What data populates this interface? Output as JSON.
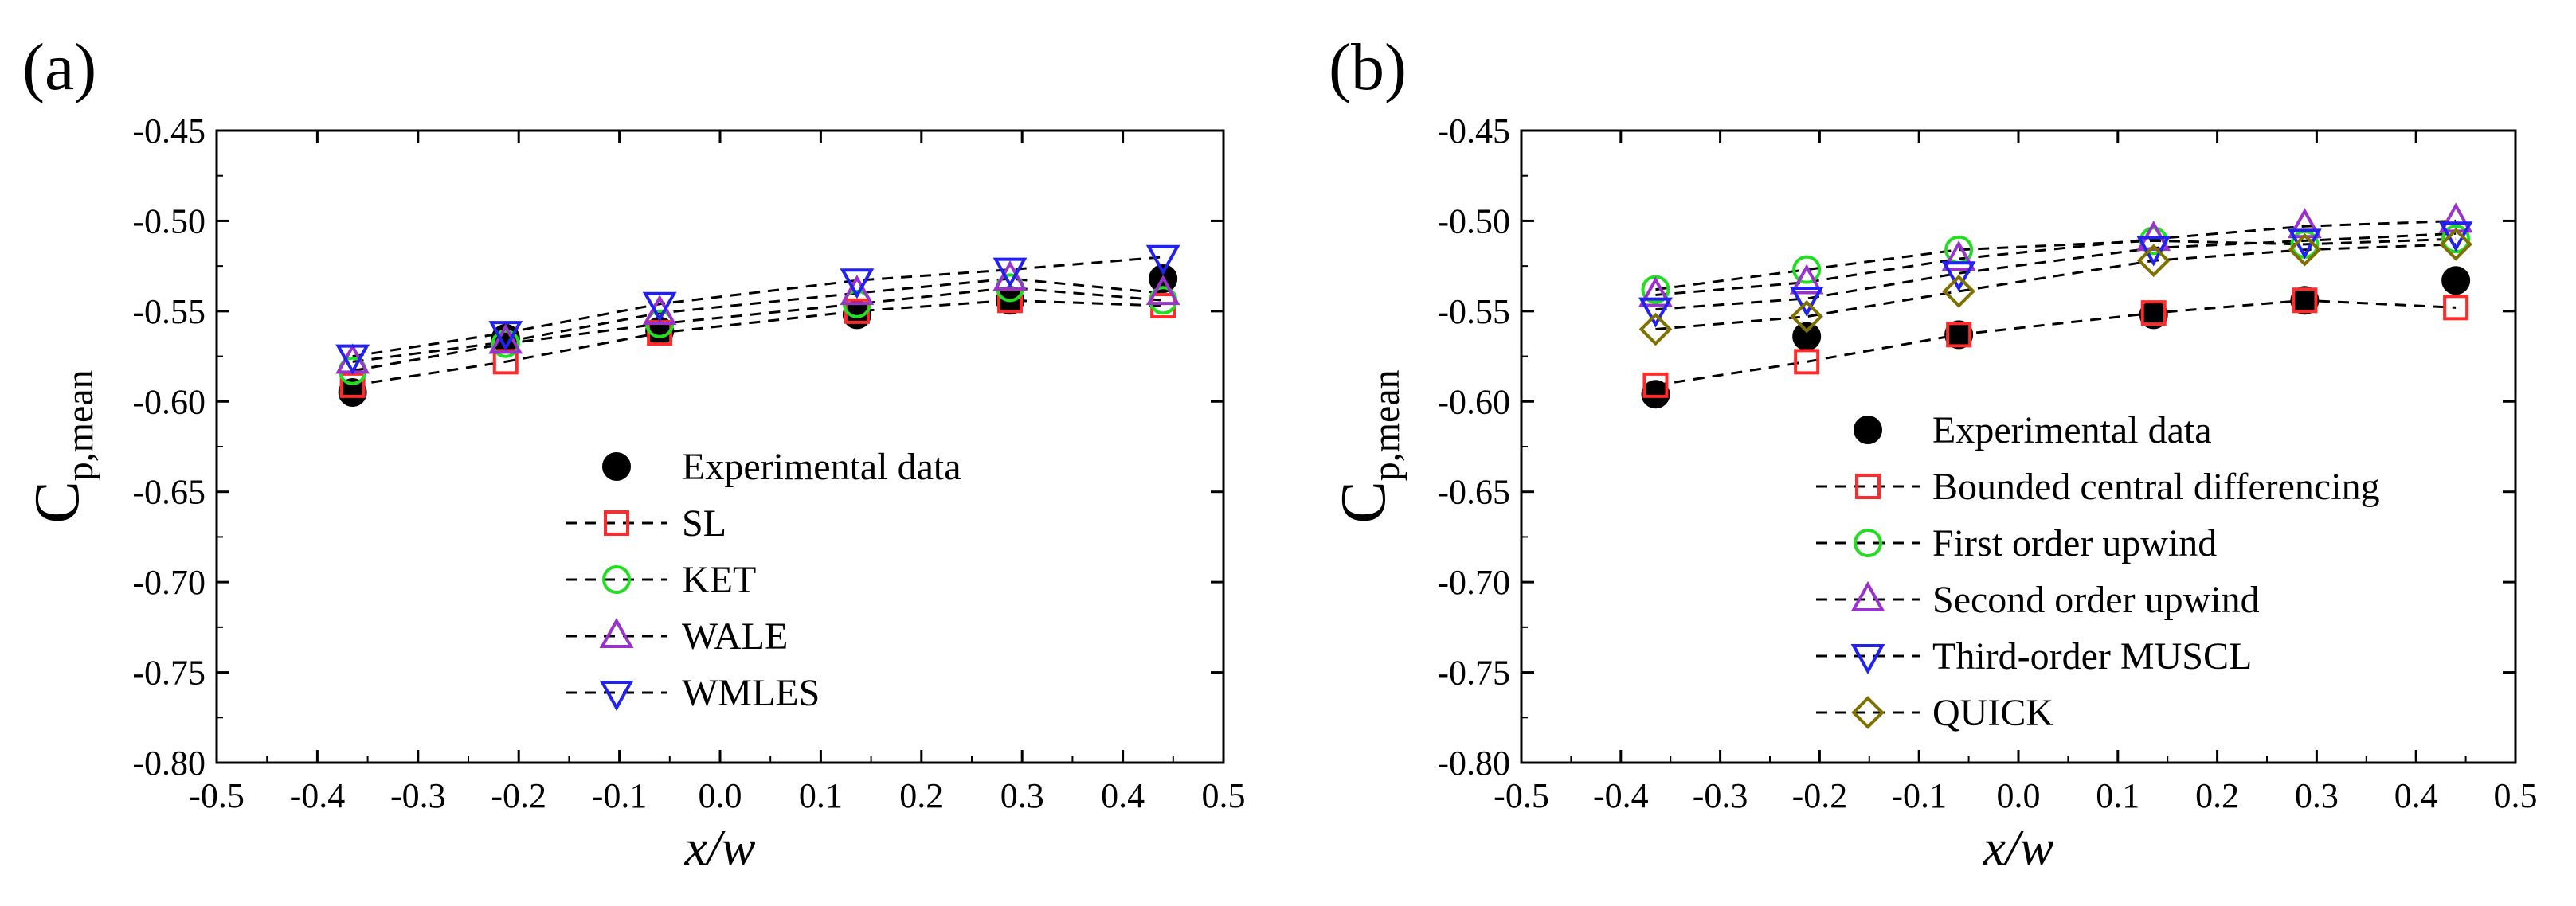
{
  "chart_data": [
    {
      "type": "line",
      "panel_label": "(a)",
      "xlabel": "x/w",
      "ylabel": "C",
      "ylabel_subscript": "p,mean",
      "xlim": [
        -0.5,
        0.5
      ],
      "ylim": [
        -0.8,
        -0.45
      ],
      "xticks": [
        "-0.5",
        "-0.4",
        "-0.3",
        "-0.2",
        "-0.1",
        "0.0",
        "0.1",
        "0.2",
        "0.3",
        "0.4",
        "0.5"
      ],
      "yticks": [
        "-0.45",
        "-0.50",
        "-0.55",
        "-0.60",
        "-0.65",
        "-0.70",
        "-0.75",
        "-0.80"
      ],
      "grid": false,
      "legend_position": "center-right",
      "x": [
        -0.365,
        -0.213,
        -0.06,
        0.136,
        0.288,
        0.44
      ],
      "series": [
        {
          "name": "Experimental data",
          "marker": "circle-filled",
          "color": "#000000",
          "line": false,
          "values": [
            -0.595,
            -0.565,
            -0.561,
            -0.552,
            -0.544,
            -0.532
          ]
        },
        {
          "name": "SL",
          "marker": "square",
          "color": "#ff2a2a",
          "line": true,
          "values": [
            -0.591,
            -0.578,
            -0.562,
            -0.55,
            -0.544,
            -0.547
          ]
        },
        {
          "name": "KET",
          "marker": "circle",
          "color": "#22dd22",
          "line": true,
          "values": [
            -0.583,
            -0.568,
            -0.557,
            -0.546,
            -0.537,
            -0.544
          ]
        },
        {
          "name": "WALE",
          "marker": "triangle-up",
          "color": "#9933cc",
          "line": true,
          "values": [
            -0.578,
            -0.567,
            -0.551,
            -0.54,
            -0.532,
            -0.54
          ]
        },
        {
          "name": "WMLES",
          "marker": "triangle-down",
          "color": "#2222ee",
          "line": true,
          "values": [
            -0.575,
            -0.562,
            -0.546,
            -0.533,
            -0.527,
            -0.52
          ]
        }
      ]
    },
    {
      "type": "line",
      "panel_label": "(b)",
      "xlabel": "x/w",
      "ylabel": "C",
      "ylabel_subscript": "p,mean",
      "xlim": [
        -0.5,
        0.5
      ],
      "ylim": [
        -0.8,
        -0.45
      ],
      "xticks": [
        "-0.5",
        "-0.4",
        "-0.3",
        "-0.2",
        "-0.1",
        "0.0",
        "0.1",
        "0.2",
        "0.3",
        "0.4",
        "0.5"
      ],
      "yticks": [
        "-0.45",
        "-0.50",
        "-0.55",
        "-0.60",
        "-0.65",
        "-0.70",
        "-0.75",
        "-0.80"
      ],
      "grid": false,
      "legend_position": "center-right",
      "x": [
        -0.365,
        -0.213,
        -0.06,
        0.136,
        0.288,
        0.44
      ],
      "series": [
        {
          "name": "Experimental data",
          "marker": "circle-filled",
          "color": "#000000",
          "line": false,
          "values": [
            -0.596,
            -0.564,
            -0.563,
            -0.552,
            -0.544,
            -0.533
          ]
        },
        {
          "name": "Bounded central differencing",
          "marker": "square",
          "color": "#ff2a2a",
          "line": true,
          "values": [
            -0.591,
            -0.578,
            -0.563,
            -0.551,
            -0.544,
            -0.548
          ]
        },
        {
          "name": "First order upwind",
          "marker": "circle",
          "color": "#22dd22",
          "line": true,
          "values": [
            -0.538,
            -0.527,
            -0.516,
            -0.511,
            -0.513,
            -0.51
          ]
        },
        {
          "name": "Second order upwind",
          "marker": "triangle-up",
          "color": "#9933cc",
          "line": true,
          "values": [
            -0.541,
            -0.534,
            -0.521,
            -0.51,
            -0.503,
            -0.5
          ]
        },
        {
          "name": "Third-order MUSCL",
          "marker": "triangle-down",
          "color": "#2222ee",
          "line": true,
          "values": [
            -0.549,
            -0.543,
            -0.529,
            -0.515,
            -0.511,
            -0.507
          ]
        },
        {
          "name": "QUICK",
          "marker": "diamond",
          "color": "#807000",
          "line": true,
          "values": [
            -0.56,
            -0.553,
            -0.539,
            -0.522,
            -0.516,
            -0.513
          ]
        }
      ]
    }
  ]
}
